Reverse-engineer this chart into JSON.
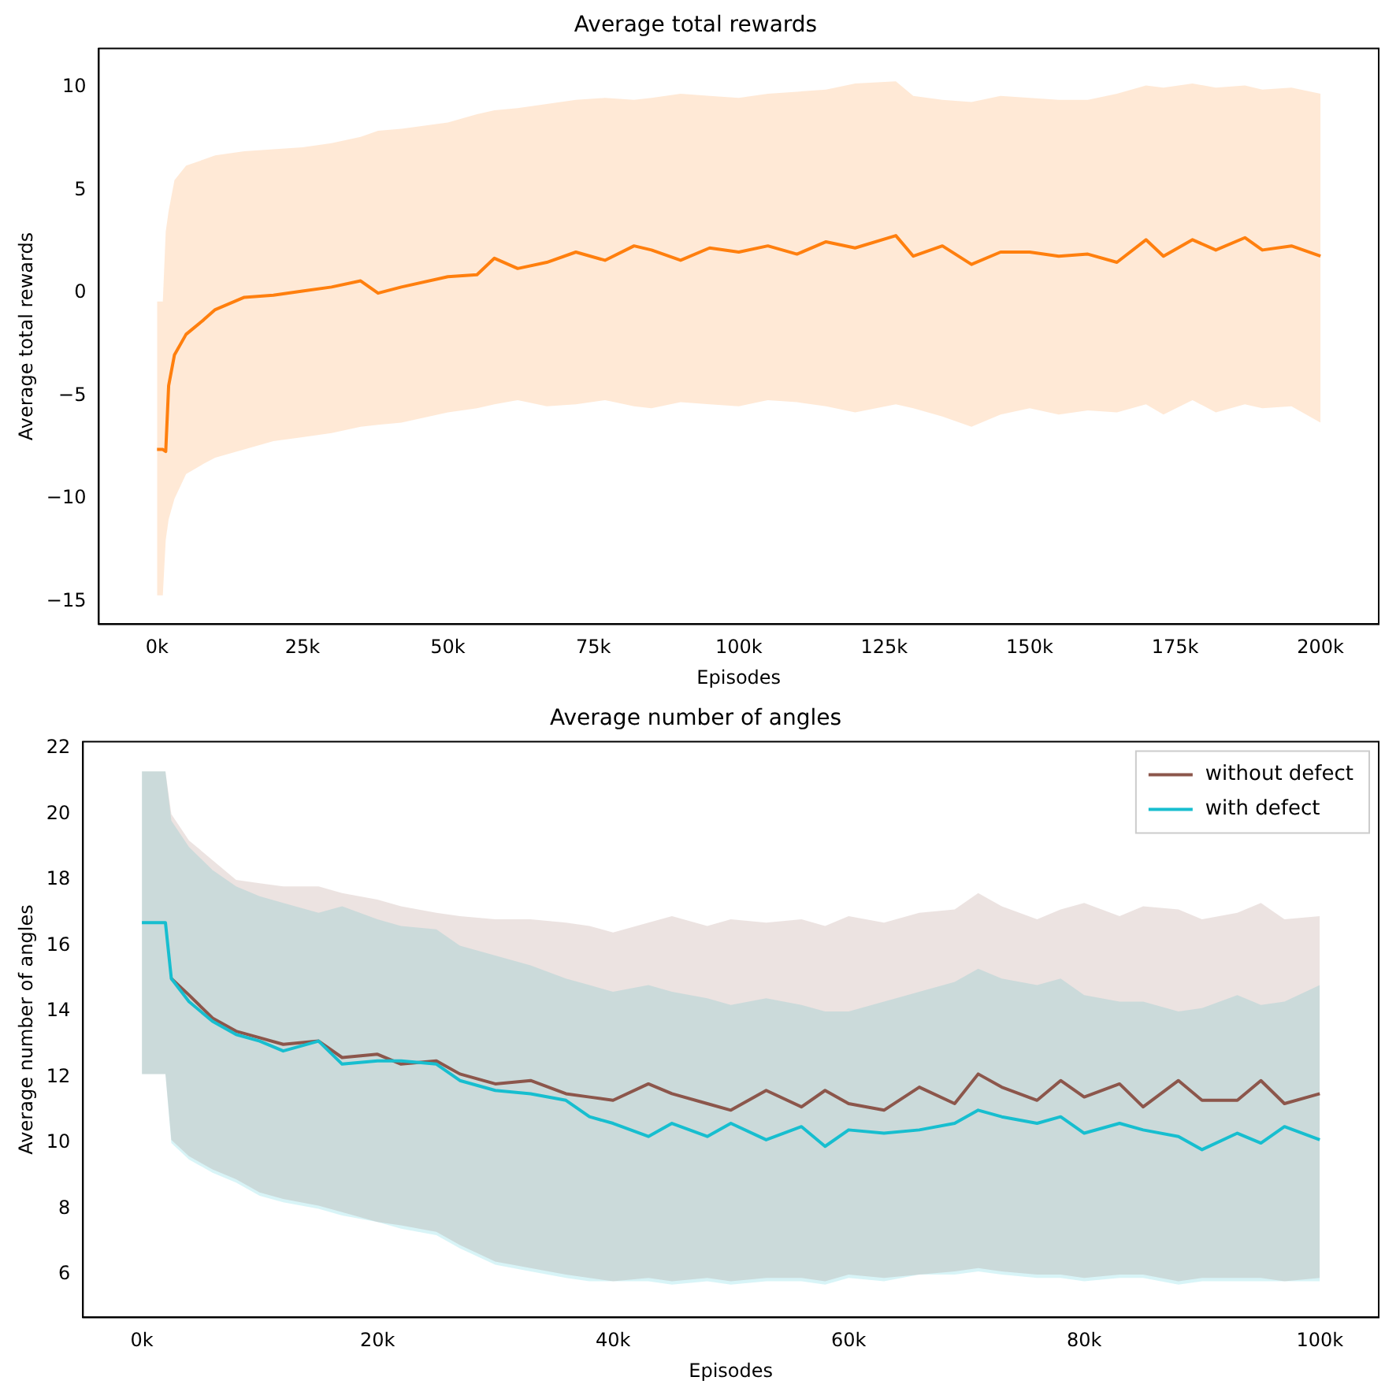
{
  "chart_data": [
    {
      "type": "line",
      "title": "Average total rewards",
      "xlabel": "Episodes",
      "ylabel": "Average total rewards",
      "xlim": [
        -10000,
        210000
      ],
      "ylim": [
        -16.1,
        11.9
      ],
      "xticks": [
        {
          "value": 0,
          "label": "0k"
        },
        {
          "value": 25000,
          "label": "25k"
        },
        {
          "value": 50000,
          "label": "50k"
        },
        {
          "value": 75000,
          "label": "75k"
        },
        {
          "value": 100000,
          "label": "100k"
        },
        {
          "value": 125000,
          "label": "125k"
        },
        {
          "value": 150000,
          "label": "150k"
        },
        {
          "value": 175000,
          "label": "175k"
        },
        {
          "value": 200000,
          "label": "200k"
        }
      ],
      "yticks": [
        {
          "value": -15,
          "label": "−15"
        },
        {
          "value": -10,
          "label": "−10"
        },
        {
          "value": -5,
          "label": "−5"
        },
        0,
        5,
        10
      ],
      "grid": false,
      "legend": false,
      "marker": "none",
      "line_style": "solid",
      "series": [
        {
          "color": "#ff7f0e",
          "x": [
            0,
            1000,
            1500,
            2000,
            3000,
            5000,
            8000,
            10000,
            15000,
            20000,
            25000,
            30000,
            35000,
            38000,
            42000,
            50000,
            55000,
            58000,
            62000,
            67000,
            72000,
            77000,
            82000,
            85000,
            90000,
            95000,
            100000,
            105000,
            110000,
            115000,
            120000,
            127000,
            130000,
            135000,
            140000,
            145000,
            150000,
            155000,
            160000,
            165000,
            170000,
            173000,
            178000,
            182000,
            187000,
            190000,
            195000,
            200000
          ],
          "values": [
            -7.6,
            -7.6,
            -7.7,
            -4.5,
            -3,
            -2,
            -1.3,
            -0.8,
            -0.2,
            -0.1,
            0.1,
            0.3,
            0.6,
            0,
            0.3,
            0.8,
            0.9,
            1.7,
            1.2,
            1.5,
            2,
            1.6,
            2.3,
            2.1,
            1.6,
            2.2,
            2.0,
            2.3,
            1.9,
            2.5,
            2.2,
            2.8,
            1.8,
            2.3,
            1.4,
            2.0,
            2.0,
            1.8,
            1.9,
            1.5,
            2.6,
            1.8,
            2.6,
            2.1,
            2.7,
            2.1,
            2.3,
            1.8
          ],
          "upper": [
            -0.4,
            -0.4,
            3,
            4,
            5.5,
            6.2,
            6.5,
            6.7,
            6.9,
            7.0,
            7.1,
            7.3,
            7.6,
            7.9,
            8.0,
            8.3,
            8.7,
            8.9,
            9.0,
            9.2,
            9.4,
            9.5,
            9.4,
            9.5,
            9.7,
            9.6,
            9.5,
            9.7,
            9.8,
            9.9,
            10.2,
            10.3,
            9.6,
            9.4,
            9.3,
            9.6,
            9.5,
            9.4,
            9.4,
            9.7,
            10.1,
            10.0,
            10.2,
            10.0,
            10.1,
            9.9,
            10.0,
            9.7
          ],
          "lower": [
            -14.7,
            -14.7,
            -12,
            -11,
            -10,
            -8.8,
            -8.3,
            -8,
            -7.6,
            -7.2,
            -7.0,
            -6.8,
            -6.5,
            -6.4,
            -6.3,
            -5.8,
            -5.6,
            -5.4,
            -5.2,
            -5.5,
            -5.4,
            -5.2,
            -5.5,
            -5.6,
            -5.3,
            -5.4,
            -5.5,
            -5.2,
            -5.3,
            -5.5,
            -5.8,
            -5.4,
            -5.6,
            -6.0,
            -6.5,
            -5.9,
            -5.6,
            -5.9,
            -5.7,
            -5.8,
            -5.4,
            -5.9,
            -5.2,
            -5.8,
            -5.4,
            -5.6,
            -5.5,
            -6.3
          ]
        }
      ]
    },
    {
      "type": "line",
      "title": "Average number of angles",
      "xlabel": "Episodes",
      "ylabel": "Average number of angles",
      "xlim": [
        -5000,
        105000
      ],
      "ylim": [
        4.7,
        22.2
      ],
      "xticks": [
        {
          "value": 0,
          "label": "0k"
        },
        {
          "value": 20000,
          "label": "20k"
        },
        {
          "value": 40000,
          "label": "40k"
        },
        {
          "value": 60000,
          "label": "60k"
        },
        {
          "value": 80000,
          "label": "80k"
        },
        {
          "value": 100000,
          "label": "100k"
        }
      ],
      "yticks": [
        6,
        8,
        10,
        12,
        14,
        16,
        18,
        20,
        22
      ],
      "grid": false,
      "legend": "top right",
      "marker": "none",
      "line_style": "solid",
      "series": [
        {
          "name": "without defect",
          "color": "#8c564b",
          "x": [
            0,
            2000,
            2500,
            4000,
            6000,
            8000,
            10000,
            12000,
            15000,
            17000,
            20000,
            22000,
            25000,
            27000,
            30000,
            33000,
            36000,
            38000,
            40000,
            43000,
            45000,
            48000,
            50000,
            53000,
            56000,
            58000,
            60000,
            63000,
            66000,
            69000,
            71000,
            73000,
            76000,
            78000,
            80000,
            83000,
            85000,
            88000,
            90000,
            93000,
            95000,
            97000,
            100000
          ],
          "values": [
            null,
            null,
            15.0,
            14.5,
            13.8,
            13.4,
            13.2,
            13.0,
            13.1,
            12.6,
            12.7,
            12.4,
            12.5,
            12.1,
            11.8,
            11.9,
            11.5,
            11.4,
            11.3,
            11.8,
            11.5,
            11.2,
            11.0,
            11.6,
            11.1,
            11.6,
            11.2,
            11.0,
            11.7,
            11.2,
            12.1,
            11.7,
            11.3,
            11.9,
            11.4,
            11.8,
            11.1,
            11.9,
            11.3,
            11.3,
            11.9,
            11.2,
            11.5
          ],
          "upper": [
            21.3,
            21.3,
            20.0,
            19.2,
            18.6,
            18.0,
            17.9,
            17.8,
            17.8,
            17.6,
            17.4,
            17.2,
            17.0,
            16.9,
            16.8,
            16.8,
            16.7,
            16.6,
            16.4,
            16.7,
            16.9,
            16.6,
            16.8,
            16.7,
            16.8,
            16.6,
            16.9,
            16.7,
            17.0,
            17.1,
            17.6,
            17.2,
            16.8,
            17.1,
            17.3,
            16.9,
            17.2,
            17.1,
            16.8,
            17.0,
            17.3,
            16.8,
            16.9
          ],
          "lower": [
            12.1,
            12.1,
            10.1,
            9.6,
            9.2,
            8.9,
            8.5,
            8.3,
            8.1,
            7.9,
            7.6,
            7.5,
            7.3,
            6.9,
            6.4,
            6.2,
            6.0,
            5.9,
            5.8,
            5.9,
            5.8,
            5.9,
            5.8,
            5.9,
            5.9,
            5.8,
            6.0,
            5.9,
            6.0,
            6.1,
            6.2,
            6.1,
            6.0,
            6.0,
            5.9,
            6.0,
            6.0,
            5.8,
            5.9,
            5.9,
            5.9,
            5.8,
            5.9
          ]
        },
        {
          "name": "with defect",
          "color": "#17becf",
          "x": [
            0,
            2000,
            2500,
            4000,
            6000,
            8000,
            10000,
            12000,
            15000,
            17000,
            20000,
            22000,
            25000,
            27000,
            30000,
            33000,
            36000,
            38000,
            40000,
            43000,
            45000,
            48000,
            50000,
            53000,
            56000,
            58000,
            60000,
            63000,
            66000,
            69000,
            71000,
            73000,
            76000,
            78000,
            80000,
            83000,
            85000,
            88000,
            90000,
            93000,
            95000,
            97000,
            100000
          ],
          "values": [
            16.7,
            16.7,
            15.0,
            14.3,
            13.7,
            13.3,
            13.1,
            12.8,
            13.1,
            12.4,
            12.5,
            12.5,
            12.4,
            11.9,
            11.6,
            11.5,
            11.3,
            10.8,
            10.6,
            10.2,
            10.6,
            10.2,
            10.6,
            10.1,
            10.5,
            9.9,
            10.4,
            10.3,
            10.4,
            10.6,
            11.0,
            10.8,
            10.6,
            10.8,
            10.3,
            10.6,
            10.4,
            10.2,
            9.8,
            10.3,
            10.0,
            10.5,
            10.1
          ],
          "upper": [
            21.3,
            21.3,
            19.8,
            19.0,
            18.3,
            17.8,
            17.5,
            17.3,
            17.0,
            17.2,
            16.8,
            16.6,
            16.5,
            16.0,
            15.7,
            15.4,
            15.0,
            14.8,
            14.6,
            14.8,
            14.6,
            14.4,
            14.2,
            14.4,
            14.2,
            14.0,
            14.0,
            14.3,
            14.6,
            14.9,
            15.3,
            15.0,
            14.8,
            15.0,
            14.5,
            14.3,
            14.3,
            14.0,
            14.1,
            14.5,
            14.2,
            14.3,
            14.8
          ],
          "lower": [
            12.1,
            12.1,
            10.0,
            9.5,
            9.1,
            8.8,
            8.4,
            8.2,
            8.0,
            7.8,
            7.6,
            7.4,
            7.2,
            6.8,
            6.3,
            6.1,
            5.9,
            5.8,
            5.8,
            5.8,
            5.7,
            5.8,
            5.7,
            5.8,
            5.8,
            5.7,
            5.9,
            5.8,
            6.0,
            6.0,
            6.1,
            6.0,
            5.9,
            5.9,
            5.8,
            5.9,
            5.9,
            5.7,
            5.8,
            5.8,
            5.8,
            5.8,
            5.8
          ]
        }
      ]
    }
  ]
}
